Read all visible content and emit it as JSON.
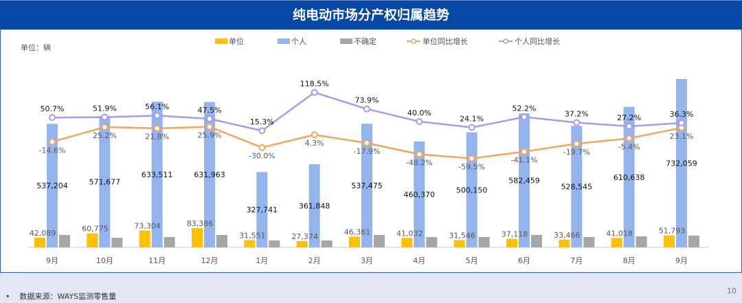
{
  "title": "纯电动市场分产权归属趋势",
  "unit_label": "单位：辆",
  "footer": {
    "source": "数据来源：WAYS监测零售量",
    "bullet": "•",
    "page": "10"
  },
  "colors": {
    "unit": "#ffc000",
    "personal": "#94b4ee",
    "uncertain": "#a6a6a6",
    "unit_yoy": "#f5a55a",
    "personal_yoy": "#a49cf0"
  },
  "chart_data": {
    "type": "bar+line",
    "title": "纯电动市场分产权归属趋势",
    "categories": [
      "9月",
      "10月",
      "11月",
      "12月",
      "1月",
      "2月",
      "3月",
      "4月",
      "5月",
      "6月",
      "7月",
      "8月",
      "9月"
    ],
    "legend": [
      "单位",
      "个人",
      "不确定",
      "单位同比增长",
      "个人同比增长"
    ],
    "legend_position": "top",
    "series": [
      {
        "name": "单位",
        "type": "bar",
        "values": [
          42089,
          60775,
          73304,
          83386,
          31551,
          27374,
          46361,
          41032,
          31546,
          37118,
          33466,
          41018,
          51793
        ],
        "labels": [
          "42,089",
          "60,775",
          "73,304",
          "83,386",
          "31,551",
          "27,374",
          "46,361",
          "41,032",
          "31,546",
          "37,118",
          "33,466",
          "41,018",
          "51,793"
        ]
      },
      {
        "name": "个人",
        "type": "bar",
        "values": [
          537204,
          571677,
          633511,
          631963,
          327741,
          361848,
          537475,
          460370,
          500150,
          582459,
          528545,
          610638,
          732059
        ],
        "labels": [
          "537,204",
          "571,677",
          "633,511",
          "631,963",
          "327,741",
          "361,848",
          "537,475",
          "460,370",
          "500,150",
          "582,459",
          "528,545",
          "610,638",
          "732,059"
        ]
      },
      {
        "name": "不确定",
        "type": "bar",
        "values": [
          54000,
          42000,
          45000,
          54000,
          30000,
          30000,
          54000,
          45000,
          45000,
          54000,
          45000,
          48000,
          51000
        ]
      },
      {
        "name": "单位同比增长",
        "type": "line",
        "values": [
          -14.6,
          25.2,
          21.8,
          25.9,
          -30.0,
          4.3,
          -17.9,
          -48.2,
          -59.5,
          -41.1,
          -19.7,
          -5.4,
          23.1
        ],
        "labels": [
          "-14.6%",
          "25.2%",
          "21.8%",
          "25.9%",
          "-30.0%",
          "4.3%",
          "-17.9%",
          "-48.2%",
          "-59.5%",
          "-41.1%",
          "-19.7%",
          "-5.4%",
          "23.1%"
        ]
      },
      {
        "name": "个人同比增长",
        "type": "line",
        "values": [
          50.7,
          51.9,
          56.1,
          47.5,
          15.3,
          118.5,
          73.9,
          40.0,
          24.1,
          52.2,
          37.2,
          27.2,
          36.3
        ],
        "labels": [
          "50.7%",
          "51.9%",
          "56.1%",
          "47.5%",
          "15.3%",
          "118.5%",
          "73.9%",
          "40.0%",
          "24.1%",
          "52.2%",
          "37.2%",
          "27.2%",
          "36.3%"
        ]
      }
    ]
  }
}
